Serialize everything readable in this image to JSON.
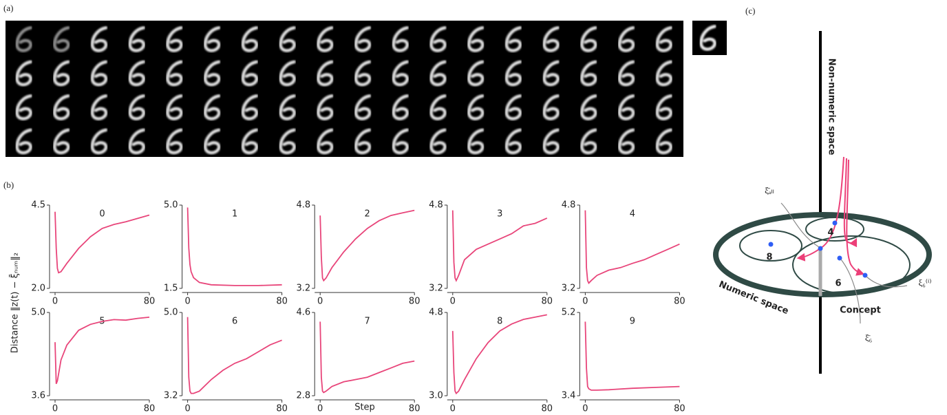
{
  "panel_labels": [
    "(a)",
    "(b)",
    "(c)"
  ],
  "ylabel": "Distance ‖z(t) − ξ̄ₙᵤₘ‖₂",
  "xlabel": "Step",
  "chart_data": [
    {
      "type": "line",
      "title": "0",
      "color": "#e8457a",
      "xlim": [
        0,
        80
      ],
      "xticks": [
        0,
        80
      ],
      "ylim": [
        2,
        4.5
      ],
      "yticks": [
        {
          "value": 2,
          "label": "2.0"
        },
        4.5
      ],
      "x": [
        0,
        1,
        2,
        3,
        5,
        10,
        20,
        30,
        40,
        50,
        60,
        70,
        80
      ],
      "values": [
        4.3,
        3.2,
        2.6,
        2.47,
        2.5,
        2.75,
        3.2,
        3.55,
        3.8,
        3.92,
        4.0,
        4.1,
        4.2
      ]
    },
    {
      "type": "line",
      "title": "1",
      "color": "#e8457a",
      "xlim": [
        0,
        80
      ],
      "xticks": [
        0,
        80
      ],
      "ylim": [
        1.5,
        5
      ],
      "yticks": [
        1.5,
        {
          "value": 5,
          "label": "5.0"
        }
      ],
      "x": [
        0,
        1,
        2,
        3,
        5,
        10,
        20,
        40,
        60,
        80
      ],
      "values": [
        4.9,
        3.2,
        2.5,
        2.2,
        1.95,
        1.75,
        1.65,
        1.62,
        1.62,
        1.65
      ]
    },
    {
      "type": "line",
      "title": "2",
      "color": "#e8457a",
      "xlim": [
        0,
        80
      ],
      "xticks": [
        0,
        80
      ],
      "ylim": [
        3.2,
        4.8
      ],
      "yticks": [
        3.2,
        4.8
      ],
      "x": [
        0,
        1,
        2,
        3,
        5,
        10,
        20,
        30,
        40,
        50,
        60,
        70,
        80
      ],
      "values": [
        4.6,
        3.8,
        3.4,
        3.35,
        3.4,
        3.6,
        3.9,
        4.15,
        4.35,
        4.5,
        4.6,
        4.65,
        4.7
      ]
    },
    {
      "type": "line",
      "title": "3",
      "color": "#e8457a",
      "xlim": [
        0,
        80
      ],
      "xticks": [
        0,
        80
      ],
      "ylim": [
        3.2,
        4.8
      ],
      "yticks": [
        3.2,
        4.8
      ],
      "x": [
        0,
        1,
        2,
        3,
        5,
        10,
        20,
        30,
        40,
        50,
        60,
        70,
        80
      ],
      "values": [
        4.7,
        3.7,
        3.4,
        3.35,
        3.45,
        3.75,
        3.95,
        4.05,
        4.15,
        4.25,
        4.4,
        4.45,
        4.55
      ]
    },
    {
      "type": "line",
      "title": "4",
      "color": "#e8457a",
      "xlim": [
        0,
        80
      ],
      "xticks": [
        0,
        80
      ],
      "ylim": [
        3.2,
        4.8
      ],
      "yticks": [
        3.2,
        4.8
      ],
      "x": [
        0,
        1,
        2,
        3,
        5,
        10,
        20,
        30,
        40,
        50,
        60,
        70,
        80
      ],
      "values": [
        4.7,
        3.6,
        3.35,
        3.3,
        3.35,
        3.45,
        3.55,
        3.6,
        3.68,
        3.75,
        3.85,
        3.95,
        4.05
      ]
    },
    {
      "type": "line",
      "title": "5",
      "color": "#e8457a",
      "xlim": [
        0,
        80
      ],
      "xticks": [
        0,
        80
      ],
      "ylim": [
        3.6,
        5
      ],
      "yticks": [
        3.6,
        {
          "value": 5,
          "label": "5.0"
        }
      ],
      "x": [
        0,
        1,
        2,
        5,
        10,
        20,
        30,
        40,
        50,
        60,
        70,
        80
      ],
      "values": [
        4.5,
        3.8,
        3.85,
        4.2,
        4.45,
        4.7,
        4.8,
        4.85,
        4.88,
        4.87,
        4.9,
        4.92
      ]
    },
    {
      "type": "line",
      "title": "6",
      "color": "#e8457a",
      "xlim": [
        0,
        80
      ],
      "xticks": [
        0,
        80
      ],
      "ylim": [
        3.2,
        5
      ],
      "yticks": [
        3.2,
        {
          "value": 5,
          "label": "5.0"
        }
      ],
      "x": [
        0,
        1,
        2,
        3,
        5,
        10,
        20,
        30,
        40,
        50,
        60,
        70,
        80
      ],
      "values": [
        4.9,
        3.6,
        3.3,
        3.25,
        3.25,
        3.3,
        3.55,
        3.75,
        3.9,
        4.0,
        4.15,
        4.3,
        4.4
      ]
    },
    {
      "type": "line",
      "title": "7",
      "color": "#e8457a",
      "xlim": [
        0,
        80
      ],
      "xticks": [
        0,
        80
      ],
      "ylim": [
        2.8,
        4.6
      ],
      "yticks": [
        2.8,
        4.6
      ],
      "x": [
        0,
        1,
        2,
        3,
        5,
        10,
        20,
        30,
        40,
        50,
        60,
        70,
        80
      ],
      "values": [
        4.4,
        3.2,
        2.9,
        2.87,
        2.9,
        3.0,
        3.1,
        3.15,
        3.2,
        3.3,
        3.4,
        3.5,
        3.55
      ]
    },
    {
      "type": "line",
      "title": "8",
      "color": "#e8457a",
      "xlim": [
        0,
        80
      ],
      "xticks": [
        0,
        80
      ],
      "ylim": [
        3,
        4.8
      ],
      "yticks": [
        {
          "value": 3,
          "label": "3.0"
        },
        4.8
      ],
      "x": [
        0,
        1,
        2,
        3,
        5,
        10,
        20,
        30,
        40,
        50,
        60,
        70,
        80
      ],
      "values": [
        4.4,
        3.5,
        3.1,
        3.05,
        3.1,
        3.35,
        3.8,
        4.15,
        4.4,
        4.55,
        4.65,
        4.7,
        4.75
      ]
    },
    {
      "type": "line",
      "title": "9",
      "color": "#e8457a",
      "xlim": [
        0,
        80
      ],
      "xticks": [
        0,
        80
      ],
      "ylim": [
        3.4,
        5.2
      ],
      "yticks": [
        3.4,
        5.2
      ],
      "x": [
        0,
        1,
        2,
        3,
        5,
        10,
        20,
        40,
        60,
        80
      ],
      "values": [
        5.0,
        4.0,
        3.6,
        3.55,
        3.52,
        3.52,
        3.53,
        3.56,
        3.58,
        3.6
      ]
    }
  ],
  "diagram": {
    "vertical_label": "Non-numeric space",
    "plane_label": "Numeric space",
    "concept_label": "Concept",
    "xi_all": "ξ̄ₐₗₗ",
    "xi_6_mean": "ξ̄₆",
    "xi_6_i": "ξ₆⁽ⁱ⁾",
    "digits": [
      "4",
      "8",
      "6"
    ]
  }
}
